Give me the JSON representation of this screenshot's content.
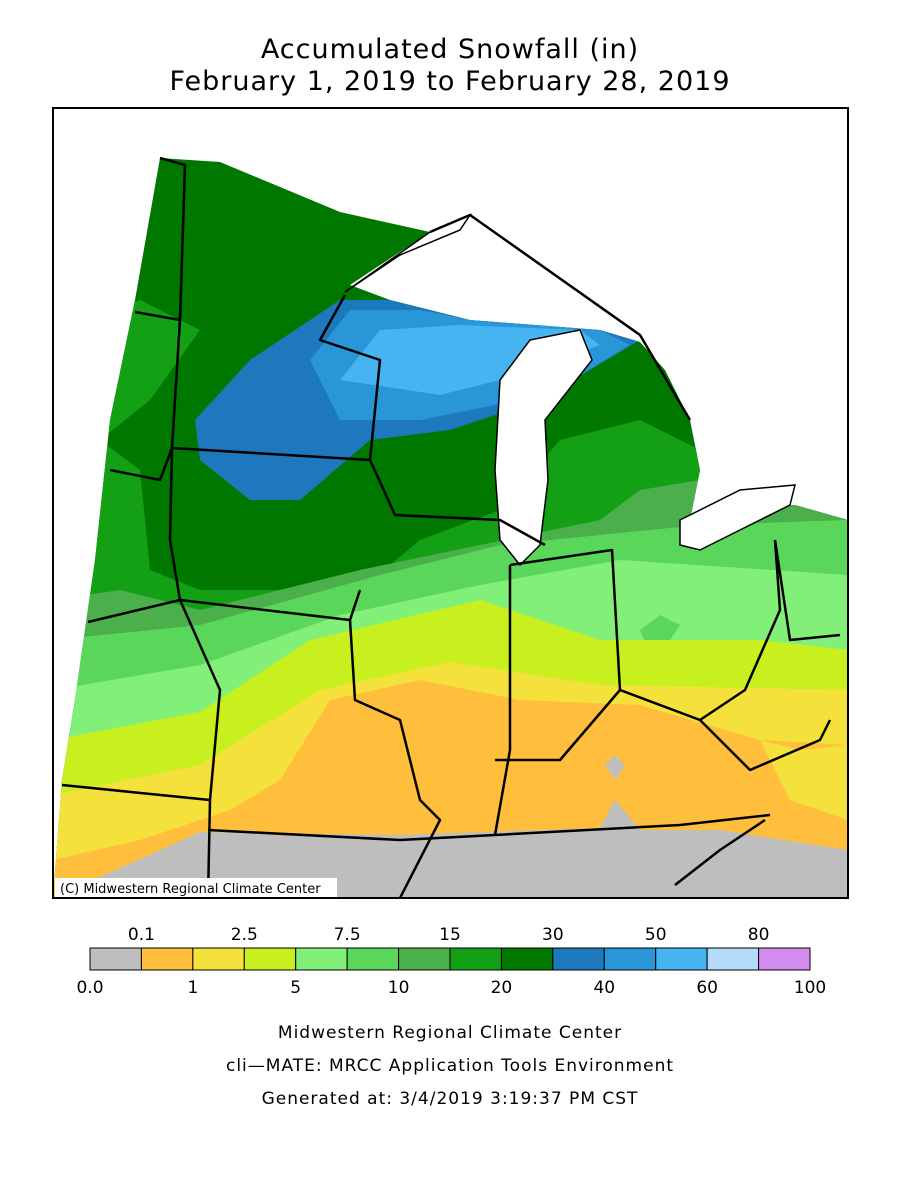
{
  "title": [
    "Accumulated Snowfall (in)",
    "February 1, 2019 to February 28, 2019"
  ],
  "credit": "(C) Midwestern Regional Climate Center",
  "legend": {
    "colors": [
      "#bebebe",
      "#ffbe3c",
      "#f5e13c",
      "#c8f01e",
      "#82f078",
      "#5ad75a",
      "#4baf4b",
      "#14a014",
      "#007800",
      "#1e78be",
      "#2896d7",
      "#46b4f0",
      "#b4dcfa",
      "#d28cf0"
    ],
    "upper_labels": [
      "0.1",
      "2.5",
      "7.5",
      "15",
      "30",
      "50",
      "80"
    ],
    "lower_labels": [
      "0.0",
      "1",
      "5",
      "10",
      "20",
      "40",
      "60",
      "100"
    ]
  },
  "footer": [
    "Midwestern Regional Climate Center",
    "cli—MATE: MRCC Application Tools Environment",
    "Generated at: 3/4/2019 3:19:37 PM CST"
  ]
}
